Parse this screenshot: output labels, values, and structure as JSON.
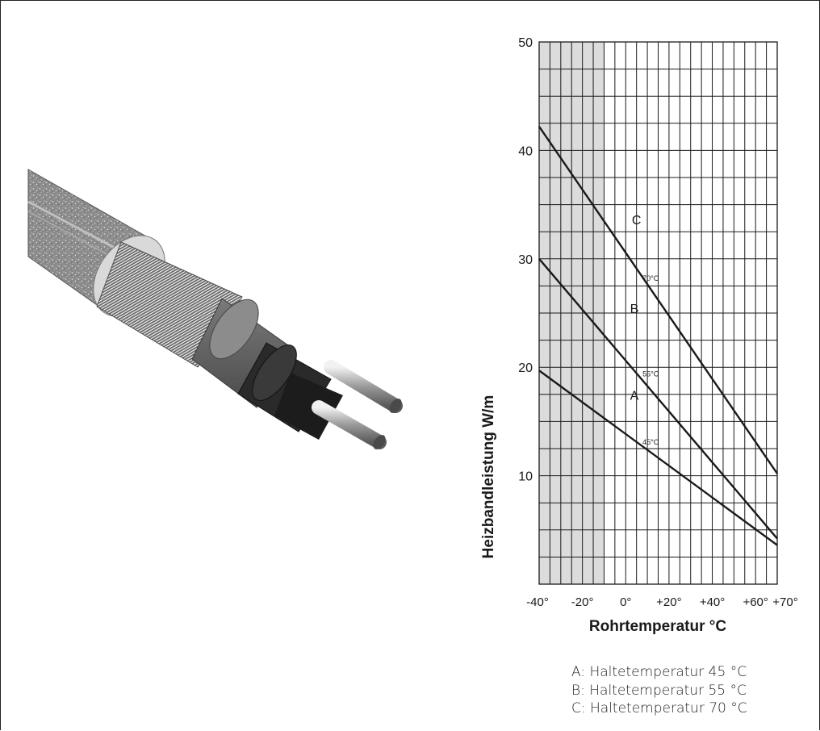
{
  "chart_data": {
    "type": "line",
    "xlabel": "Rohrtemperatur °C",
    "ylabel": "Heizbandleistung W/m",
    "xlim": [
      -40,
      70
    ],
    "ylim": [
      0,
      50
    ],
    "x_ticks": [
      {
        "value": -40,
        "label": "-40°"
      },
      {
        "value": -20,
        "label": "-20°"
      },
      {
        "value": 0,
        "label": "0°"
      },
      {
        "value": 20,
        "label": "+20°"
      },
      {
        "value": 40,
        "label": "+40°"
      },
      {
        "value": 60,
        "label": "+60°"
      },
      {
        "value": 70,
        "label": "+70°"
      }
    ],
    "y_ticks": [
      10,
      20,
      30,
      40,
      50
    ],
    "grid": true,
    "shaded_region": {
      "x_from": -40,
      "x_to": -10
    },
    "series": [
      {
        "name": "A",
        "x": [
          -40,
          70
        ],
        "y": [
          19.7,
          3.6
        ],
        "point_label": {
          "x": 10,
          "y": 12.5,
          "text": "45°C"
        },
        "curve_label": {
          "x": 4,
          "y": 17,
          "text": "A"
        }
      },
      {
        "name": "B",
        "x": [
          -40,
          70
        ],
        "y": [
          30,
          4.2
        ],
        "point_label": {
          "x": 10,
          "y": 18.8,
          "text": "55°C"
        },
        "curve_label": {
          "x": 4,
          "y": 25,
          "text": "B"
        }
      },
      {
        "name": "C",
        "x": [
          -40,
          70
        ],
        "y": [
          42.2,
          10.2
        ],
        "point_label": {
          "x": 10,
          "y": 27.6,
          "text": "70°C"
        },
        "curve_label": {
          "x": 5,
          "y": 33.2,
          "text": "C"
        }
      }
    ]
  },
  "legend": {
    "a": "A: Haltetemperatur 45 °C",
    "b": "B:  Haltetemperatur 55 °C",
    "c": "C:  Haltetemperatur 70 °C"
  }
}
